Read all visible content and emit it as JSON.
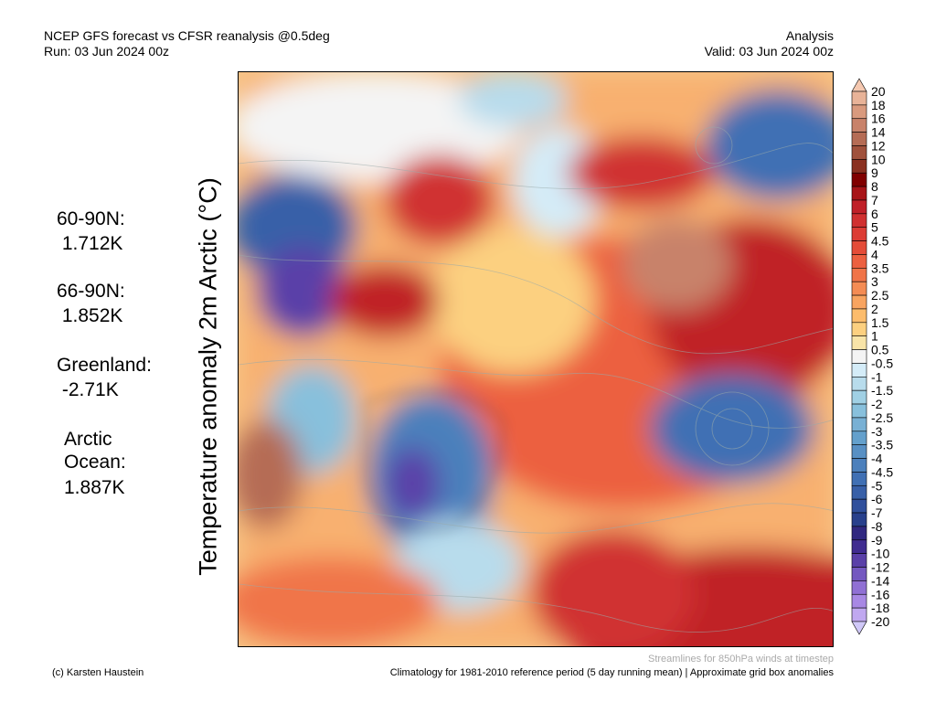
{
  "header": {
    "title": "NCEP GFS forecast vs CFSR reanalysis @0.5deg",
    "run": "Run: 03 Jun 2024 00z",
    "mode": "Analysis",
    "valid": "Valid: 03 Jun 2024 00z"
  },
  "ylabel": "Temperature anomaly 2m Arctic (°C)",
  "stats": [
    {
      "label": "60-90N:",
      "value": " 1.712K"
    },
    {
      "label": "66-90N:",
      "value": " 1.852K"
    },
    {
      "label": "Greenland:",
      "value": " -2.71K"
    },
    {
      "label": "Arctic\nOcean:",
      "value": "1.887K"
    }
  ],
  "footer": {
    "credit": "(c) Karsten Haustein",
    "streamlines": "Streamlines for 850hPa winds at timestep",
    "climatology": "Climatology for 1981-2010 reference period (5 day running mean) | Approximate grid box anomalies"
  },
  "colorbar": {
    "labels": [
      "20",
      "18",
      "16",
      "14",
      "12",
      "10",
      "9",
      "8",
      "7",
      "6",
      "5",
      "4.5",
      "4",
      "3.5",
      "3",
      "2.5",
      "2",
      "1.5",
      "1",
      "0.5",
      "-0.5",
      "-1",
      "-1.5",
      "-2",
      "-2.5",
      "-3",
      "-3.5",
      "-4",
      "-4.5",
      "-5",
      "-6",
      "-7",
      "-8",
      "-9",
      "-10",
      "-12",
      "-14",
      "-16",
      "-18",
      "-20"
    ],
    "top_arrow": "#f5c8b0",
    "bottom_arrow": "#d0c8f8",
    "colors": [
      "#e8b398",
      "#d99a7e",
      "#c8826a",
      "#b56c55",
      "#a0513c",
      "#8a3020",
      "#800000",
      "#a81418",
      "#c02028",
      "#d03030",
      "#dc3c34",
      "#e44c38",
      "#ec6040",
      "#f07448",
      "#f48c54",
      "#f8a460",
      "#fcbc6c",
      "#fcd080",
      "#f8e4a8",
      "#f4f4f4",
      "#d4ecf8",
      "#b8dcec",
      "#a0d0e4",
      "#88c0dc",
      "#78b0d4",
      "#64a0cc",
      "#5890c4",
      "#4c80bc",
      "#4070b4",
      "#3860a8",
      "#30509c",
      "#28408c",
      "#302880",
      "#402c90",
      "#5a40a8",
      "#7458c0",
      "#9070d4",
      "#a888e4",
      "#c0a8f0"
    ]
  }
}
